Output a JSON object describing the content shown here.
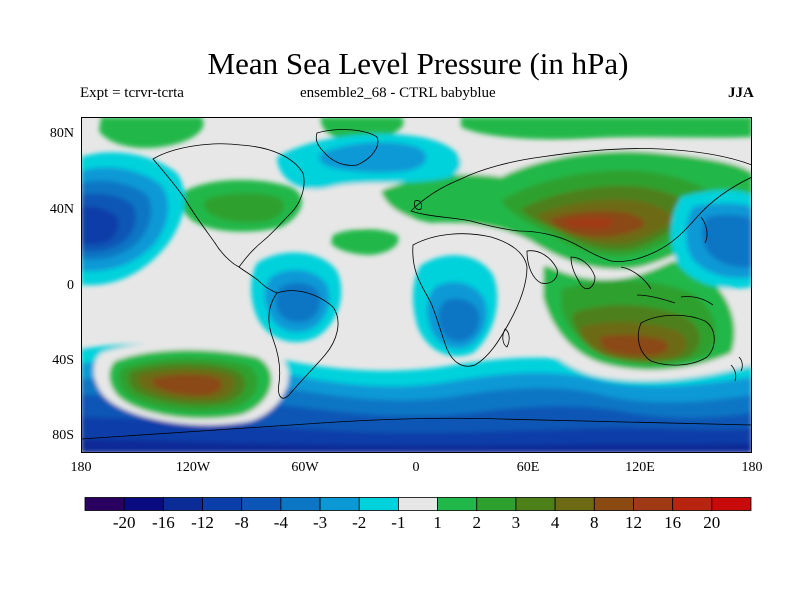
{
  "title": "Mean Sea Level Pressure (in hPa)",
  "subtitle_left": "Expt = tcrvr-tcrta",
  "subtitle_center": "ensemble2_68 - CTRL babyblue",
  "season": "JJA",
  "lat_ticks": [
    "80N",
    "40N",
    "0",
    "40S",
    "80S"
  ],
  "lon_ticks": [
    "180",
    "120W",
    "60W",
    "0",
    "60E",
    "120E",
    "180"
  ],
  "colorbar": {
    "colors": [
      "#2a0060",
      "#0a0b80",
      "#0b2b96",
      "#0a3ea8",
      "#0b56b6",
      "#0a76c4",
      "#0b99d6",
      "#00d2dc",
      "#e7e7e7",
      "#20b848",
      "#2ea02e",
      "#4d7f1a",
      "#6d6a14",
      "#8a4a12",
      "#a03a14",
      "#b82410",
      "#c80a0a"
    ],
    "labels": [
      "-20",
      "-16",
      "-12",
      "-8",
      "-4",
      "-3",
      "-2",
      "-1",
      "1",
      "2",
      "3",
      "4",
      "8",
      "12",
      "16",
      "20"
    ]
  }
}
